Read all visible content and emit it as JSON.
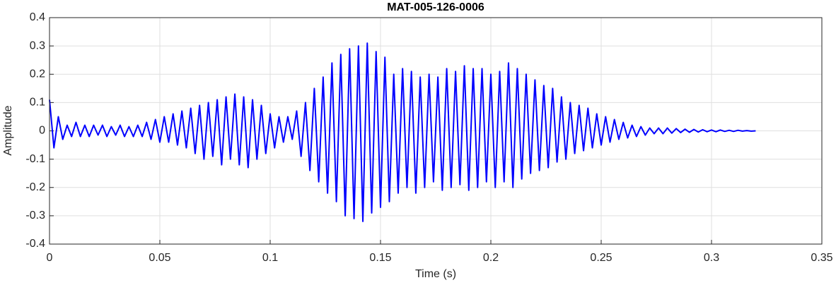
{
  "chart_data": {
    "type": "line",
    "title": "MAT-005-126-0006",
    "xlabel": "Time (s)",
    "ylabel": "Amplitude",
    "x": [
      0,
      0.002,
      0.004,
      0.006,
      0.008,
      0.01,
      0.012,
      0.014,
      0.016,
      0.018,
      0.02,
      0.022,
      0.024,
      0.026,
      0.028,
      0.03,
      0.032,
      0.034,
      0.036,
      0.038,
      0.04,
      0.042,
      0.044,
      0.046,
      0.048,
      0.05,
      0.052,
      0.054,
      0.056,
      0.058,
      0.06,
      0.062,
      0.064,
      0.066,
      0.068,
      0.07,
      0.072,
      0.074,
      0.076,
      0.078,
      0.08,
      0.082,
      0.084,
      0.086,
      0.088,
      0.09,
      0.092,
      0.094,
      0.096,
      0.098,
      0.1,
      0.102,
      0.104,
      0.106,
      0.108,
      0.11,
      0.112,
      0.114,
      0.116,
      0.118,
      0.12,
      0.122,
      0.124,
      0.126,
      0.128,
      0.13,
      0.132,
      0.134,
      0.136,
      0.138,
      0.14,
      0.142,
      0.144,
      0.146,
      0.148,
      0.15,
      0.152,
      0.154,
      0.156,
      0.158,
      0.16,
      0.162,
      0.164,
      0.166,
      0.168,
      0.17,
      0.172,
      0.174,
      0.176,
      0.178,
      0.18,
      0.182,
      0.184,
      0.186,
      0.188,
      0.19,
      0.192,
      0.194,
      0.196,
      0.198,
      0.2,
      0.202,
      0.204,
      0.206,
      0.208,
      0.21,
      0.212,
      0.214,
      0.216,
      0.218,
      0.22,
      0.222,
      0.224,
      0.226,
      0.228,
      0.23,
      0.232,
      0.234,
      0.236,
      0.238,
      0.24,
      0.242,
      0.244,
      0.246,
      0.248,
      0.25,
      0.252,
      0.254,
      0.256,
      0.258,
      0.26,
      0.262,
      0.264,
      0.266,
      0.268,
      0.27,
      0.272,
      0.274,
      0.276,
      0.278,
      0.28,
      0.282,
      0.284,
      0.286,
      0.288,
      0.29,
      0.292,
      0.294,
      0.296,
      0.298,
      0.3,
      0.302,
      0.304,
      0.306,
      0.308,
      0.31,
      0.312,
      0.314,
      0.316,
      0.318,
      0.32
    ],
    "series": [
      {
        "name": "Amplitude",
        "color": "#0000ff",
        "values": [
          0.11,
          -0.06,
          0.05,
          -0.03,
          0.02,
          -0.02,
          0.03,
          -0.02,
          0.02,
          -0.02,
          0.02,
          -0.015,
          0.02,
          -0.02,
          0.015,
          -0.015,
          0.02,
          -0.02,
          0.015,
          -0.02,
          0.02,
          -0.02,
          0.03,
          -0.03,
          0.04,
          -0.04,
          0.05,
          -0.04,
          0.06,
          -0.05,
          0.07,
          -0.06,
          0.08,
          -0.08,
          0.09,
          -0.1,
          0.1,
          -0.09,
          0.11,
          -0.12,
          0.12,
          -0.1,
          0.13,
          -0.12,
          0.12,
          -0.13,
          0.11,
          -0.1,
          0.09,
          -0.08,
          0.06,
          -0.06,
          0.05,
          -0.04,
          0.05,
          -0.03,
          0.07,
          -0.09,
          0.1,
          -0.14,
          0.15,
          -0.18,
          0.19,
          -0.22,
          0.24,
          -0.25,
          0.27,
          -0.3,
          0.29,
          -0.31,
          0.3,
          -0.32,
          0.31,
          -0.29,
          0.28,
          -0.27,
          0.26,
          -0.25,
          0.2,
          -0.22,
          0.22,
          -0.2,
          0.21,
          -0.22,
          0.19,
          -0.2,
          0.2,
          -0.18,
          0.19,
          -0.21,
          0.22,
          -0.2,
          0.21,
          -0.19,
          0.23,
          -0.21,
          0.22,
          -0.2,
          0.22,
          -0.18,
          0.2,
          -0.2,
          0.21,
          -0.18,
          0.24,
          -0.2,
          0.22,
          -0.17,
          0.2,
          -0.15,
          0.18,
          -0.14,
          0.16,
          -0.13,
          0.15,
          -0.11,
          0.12,
          -0.1,
          0.1,
          -0.08,
          0.09,
          -0.07,
          0.08,
          -0.06,
          0.06,
          -0.05,
          0.05,
          -0.04,
          0.04,
          -0.03,
          0.03,
          -0.025,
          0.02,
          -0.02,
          0.015,
          -0.015,
          0.01,
          -0.01,
          0.01,
          -0.01,
          0.01,
          -0.008,
          0.008,
          -0.006,
          0.006,
          -0.005,
          0.005,
          -0.004,
          0.004,
          -0.003,
          0.003,
          -0.003,
          0.003,
          -0.002,
          0.002,
          -0.002,
          0.002,
          -0.001,
          0.001,
          -0.001,
          0
        ]
      }
    ],
    "xlim": [
      0,
      0.35
    ],
    "xticks": [
      0,
      0.05,
      0.1,
      0.15,
      0.2,
      0.25,
      0.3,
      0.35
    ],
    "ylim": [
      -0.4,
      0.4
    ],
    "yticks": [
      -0.4,
      -0.3,
      -0.2,
      -0.1,
      0,
      0.1,
      0.2,
      0.3,
      0.4
    ],
    "grid": true
  }
}
